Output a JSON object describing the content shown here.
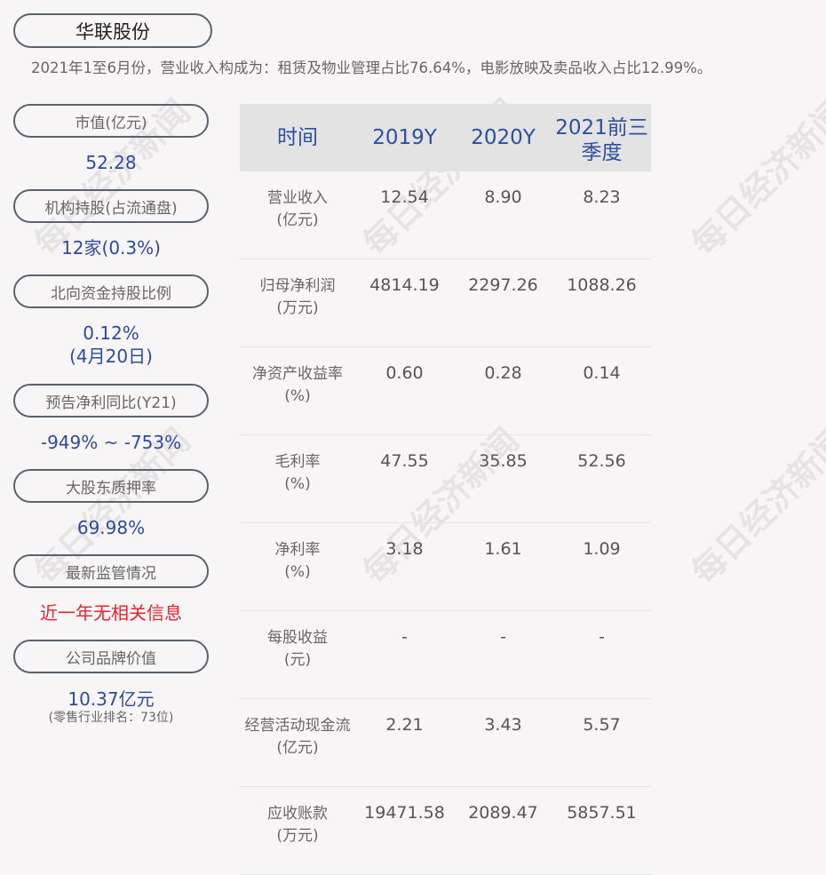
{
  "title": "华联股份",
  "summary": "2021年1至6月份，营业收入构成为：租赁及物业管理占比76.64%，电影放映及卖品收入占比12.99%。",
  "watermark": "每日经济新闻",
  "left": [
    {
      "label": "市值(亿元)",
      "value": "52.28"
    },
    {
      "label": "机构持股(占流通盘)",
      "value": "12家(0.3%)"
    },
    {
      "label": "北向资金持股比例",
      "value": "0.12%",
      "value2": "(4月20日)"
    },
    {
      "label": "预告净利同比(Y21)",
      "value": "-949% ~ -753%"
    },
    {
      "label": "大股东质押率",
      "value": "69.98%"
    },
    {
      "label": "最新监管情况",
      "value": "近一年无相关信息"
    },
    {
      "label": "公司品牌价值",
      "value": "10.37亿元",
      "note": "(零售行业排名：73位)"
    }
  ],
  "table": {
    "headers": [
      "时间",
      "2019Y",
      "2020Y",
      "2021前三季度"
    ],
    "rows": [
      {
        "l1": "营业收入",
        "l2": "(亿元)",
        "v": [
          "12.54",
          "8.90",
          "8.23"
        ]
      },
      {
        "l1": "归母净利润",
        "l2": "(万元)",
        "v": [
          "4814.19",
          "2297.26",
          "1088.26"
        ]
      },
      {
        "l1": "净资产收益率",
        "l2": "(%)",
        "v": [
          "0.60",
          "0.28",
          "0.14"
        ]
      },
      {
        "l1": "毛利率",
        "l2": "(%)",
        "v": [
          "47.55",
          "35.85",
          "52.56"
        ]
      },
      {
        "l1": "净利率",
        "l2": "(%)",
        "v": [
          "3.18",
          "1.61",
          "1.09"
        ]
      },
      {
        "l1": "每股收益",
        "l2": "(元)",
        "v": [
          "-",
          "-",
          "-"
        ]
      },
      {
        "l1": "经营活动现金流",
        "l2": "(亿元)",
        "v": [
          "2.21",
          "3.43",
          "5.57"
        ]
      },
      {
        "l1": "应收账款",
        "l2": "(万元)",
        "v": [
          "19471.58",
          "2089.47",
          "5857.51"
        ]
      }
    ]
  }
}
